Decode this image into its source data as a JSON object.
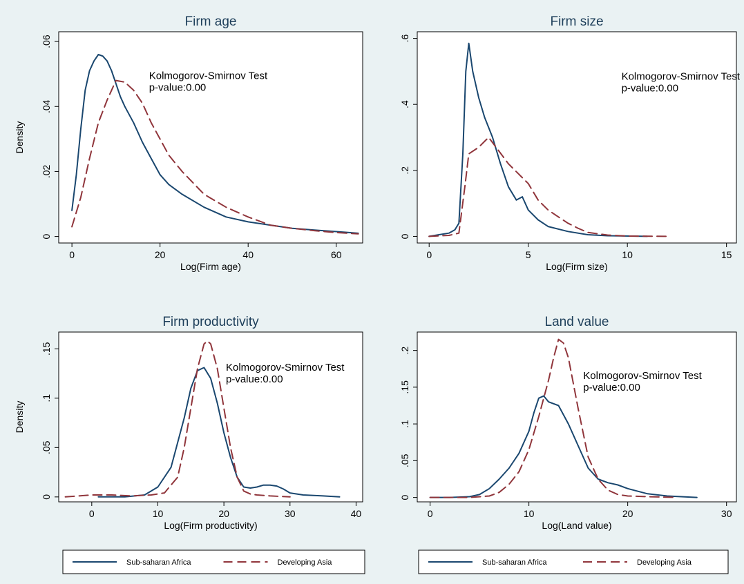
{
  "legend": {
    "items": [
      {
        "label": "Sub-saharan Africa",
        "color": "#1a476f",
        "dash": "solid"
      },
      {
        "label": "Developing Asia",
        "color": "#90353b",
        "dash": "dashed"
      }
    ]
  },
  "chart_data": [
    {
      "type": "line",
      "title": "Firm age",
      "xlabel": "Log(Firm age)",
      "ylabel": "Density",
      "xlim": [
        -3,
        66
      ],
      "ylim": [
        -0.002,
        0.063
      ],
      "xticks": [
        {
          "v": 0,
          "label": "0"
        },
        {
          "v": 20,
          "label": "20"
        },
        {
          "v": 40,
          "label": "40"
        },
        {
          "v": 60,
          "label": "60"
        }
      ],
      "yticks": [
        {
          "v": 0,
          "label": "0"
        },
        {
          "v": 0.02,
          "label": ".02"
        },
        {
          "v": 0.04,
          "label": ".04"
        },
        {
          "v": 0.06,
          "label": ".06"
        }
      ],
      "annotation": {
        "line1": "Kolmogorov-Smirnov Test",
        "line2": "p-value:0.00",
        "x": 17.5,
        "y": 0.0485
      },
      "series": [
        {
          "name": "Sub-saharan Africa",
          "x": [
            0,
            1,
            2,
            3,
            4,
            5,
            6,
            7,
            8,
            9,
            10,
            11,
            12,
            14,
            16,
            18,
            20,
            22,
            25,
            30,
            35,
            40,
            45,
            50,
            55,
            60,
            65
          ],
          "y": [
            0.008,
            0.019,
            0.033,
            0.045,
            0.051,
            0.054,
            0.056,
            0.0555,
            0.054,
            0.051,
            0.047,
            0.043,
            0.04,
            0.035,
            0.029,
            0.024,
            0.019,
            0.016,
            0.013,
            0.009,
            0.006,
            0.0045,
            0.0035,
            0.0025,
            0.002,
            0.0015,
            0.001
          ]
        },
        {
          "name": "Developing Asia",
          "x": [
            0,
            2,
            4,
            6,
            8,
            10,
            12,
            14,
            16,
            18,
            20,
            22,
            25,
            30,
            35,
            40,
            45,
            50,
            55,
            60,
            65
          ],
          "y": [
            0.003,
            0.012,
            0.024,
            0.035,
            0.042,
            0.048,
            0.0475,
            0.045,
            0.041,
            0.035,
            0.03,
            0.025,
            0.02,
            0.013,
            0.009,
            0.006,
            0.0035,
            0.0025,
            0.0018,
            0.0012,
            0.0008
          ]
        }
      ]
    },
    {
      "type": "line",
      "title": "Firm size",
      "xlabel": "Log(Firm size)",
      "ylabel": "",
      "xlim": [
        -0.6,
        15.5
      ],
      "ylim": [
        -0.02,
        0.62
      ],
      "xticks": [
        {
          "v": 0,
          "label": "0"
        },
        {
          "v": 5,
          "label": "5"
        },
        {
          "v": 10,
          "label": "10"
        },
        {
          "v": 15,
          "label": "15"
        }
      ],
      "yticks": [
        {
          "v": 0,
          "label": "0"
        },
        {
          "v": 0.2,
          "label": ".2"
        },
        {
          "v": 0.4,
          "label": ".4"
        },
        {
          "v": 0.6,
          "label": ".6"
        }
      ],
      "annotation": {
        "line1": "Kolmogorov-Smirnov Test",
        "line2": "p-value:0.00",
        "x": 9.7,
        "y": 0.475
      },
      "series": [
        {
          "name": "Sub-saharan Africa",
          "x": [
            0,
            0.5,
            1,
            1.3,
            1.5,
            1.7,
            1.85,
            2,
            2.2,
            2.5,
            2.8,
            3.2,
            3.6,
            4,
            4.4,
            4.7,
            5,
            5.5,
            6,
            7,
            8,
            9,
            11
          ],
          "y": [
            0,
            0.005,
            0.01,
            0.02,
            0.04,
            0.25,
            0.5,
            0.585,
            0.5,
            0.42,
            0.36,
            0.3,
            0.22,
            0.15,
            0.11,
            0.12,
            0.08,
            0.05,
            0.03,
            0.015,
            0.005,
            0.002,
            0
          ]
        },
        {
          "name": "Developing Asia",
          "x": [
            0,
            1,
            1.5,
            1.8,
            2,
            2.5,
            3,
            3.5,
            4,
            4.5,
            5,
            5.5,
            6,
            6.5,
            7,
            7.5,
            8,
            9,
            10,
            12
          ],
          "y": [
            0,
            0.003,
            0.01,
            0.15,
            0.25,
            0.27,
            0.3,
            0.26,
            0.22,
            0.19,
            0.16,
            0.11,
            0.08,
            0.06,
            0.04,
            0.025,
            0.012,
            0.004,
            0.001,
            0
          ]
        }
      ]
    },
    {
      "type": "line",
      "title": "Firm productivity",
      "xlabel": "Log(Firm productivity)",
      "ylabel": "Density",
      "xlim": [
        -5,
        41
      ],
      "ylim": [
        -0.005,
        0.167
      ],
      "xticks": [
        {
          "v": 0,
          "label": "0"
        },
        {
          "v": 10,
          "label": "10"
        },
        {
          "v": 20,
          "label": "20"
        },
        {
          "v": 30,
          "label": "30"
        },
        {
          "v": 40,
          "label": "40"
        }
      ],
      "yticks": [
        {
          "v": 0,
          "label": "0"
        },
        {
          "v": 0.05,
          "label": ".05"
        },
        {
          "v": 0.1,
          "label": ".1"
        },
        {
          "v": 0.15,
          "label": ".15"
        }
      ],
      "annotation": {
        "line1": "Kolmogorov-Smirnov Test",
        "line2": "p-value:0.00",
        "x": 20.3,
        "y": 0.128
      },
      "series": [
        {
          "name": "Sub-saharan Africa",
          "x": [
            1,
            5,
            8,
            10,
            12,
            14,
            15,
            16,
            17,
            18,
            19,
            20,
            21,
            22,
            23,
            24,
            25,
            26,
            27,
            28,
            29,
            30,
            32,
            35,
            37.5
          ],
          "y": [
            0,
            0,
            0.002,
            0.01,
            0.03,
            0.08,
            0.11,
            0.128,
            0.131,
            0.12,
            0.095,
            0.065,
            0.04,
            0.02,
            0.01,
            0.009,
            0.01,
            0.012,
            0.012,
            0.011,
            0.008,
            0.004,
            0.002,
            0.001,
            0
          ]
        },
        {
          "name": "Developing Asia",
          "x": [
            -4,
            -2,
            0,
            3,
            6,
            9,
            11,
            13,
            14,
            15,
            16,
            17,
            17.5,
            18,
            19,
            20,
            21,
            22,
            23,
            24,
            25,
            27,
            30
          ],
          "y": [
            0,
            0.001,
            0.002,
            0.002,
            0.001,
            0.002,
            0.004,
            0.02,
            0.05,
            0.09,
            0.13,
            0.155,
            0.158,
            0.155,
            0.13,
            0.09,
            0.05,
            0.02,
            0.006,
            0.003,
            0.002,
            0.001,
            0
          ]
        }
      ]
    },
    {
      "type": "line",
      "title": "Land value",
      "xlabel": "Log(Land value)",
      "ylabel": "",
      "xlim": [
        -1.3,
        31
      ],
      "ylim": [
        -0.006,
        0.225
      ],
      "xticks": [
        {
          "v": 0,
          "label": "0"
        },
        {
          "v": 10,
          "label": "10"
        },
        {
          "v": 20,
          "label": "20"
        },
        {
          "v": 30,
          "label": "30"
        }
      ],
      "yticks": [
        {
          "v": 0,
          "label": "0"
        },
        {
          "v": 0.05,
          "label": ".05"
        },
        {
          "v": 0.1,
          "label": ".1"
        },
        {
          "v": 0.15,
          "label": ".15"
        },
        {
          "v": 0.2,
          "label": ".2"
        }
      ],
      "annotation": {
        "line1": "Kolmogorov-Smirnov Test",
        "line2": "p-value:0.00",
        "x": 15.5,
        "y": 0.161
      },
      "series": [
        {
          "name": "Sub-saharan Africa",
          "x": [
            0,
            2,
            4,
            5,
            6,
            7,
            8,
            9,
            10,
            10.5,
            11,
            11.5,
            12,
            13,
            14,
            15,
            16,
            17,
            18,
            19,
            20,
            22,
            24,
            27
          ],
          "y": [
            0,
            0,
            0.001,
            0.004,
            0.012,
            0.025,
            0.04,
            0.06,
            0.09,
            0.115,
            0.135,
            0.138,
            0.13,
            0.125,
            0.1,
            0.07,
            0.04,
            0.025,
            0.02,
            0.017,
            0.012,
            0.005,
            0.002,
            0
          ]
        },
        {
          "name": "Developing Asia",
          "x": [
            0,
            4,
            6,
            7,
            8,
            9,
            10,
            11,
            12,
            12.5,
            13,
            13.5,
            14,
            15,
            16,
            17,
            18,
            19,
            20,
            22,
            25
          ],
          "y": [
            0,
            0,
            0.002,
            0.007,
            0.018,
            0.035,
            0.065,
            0.11,
            0.16,
            0.19,
            0.215,
            0.21,
            0.19,
            0.12,
            0.055,
            0.025,
            0.01,
            0.004,
            0.002,
            0.001,
            0
          ]
        }
      ]
    }
  ]
}
